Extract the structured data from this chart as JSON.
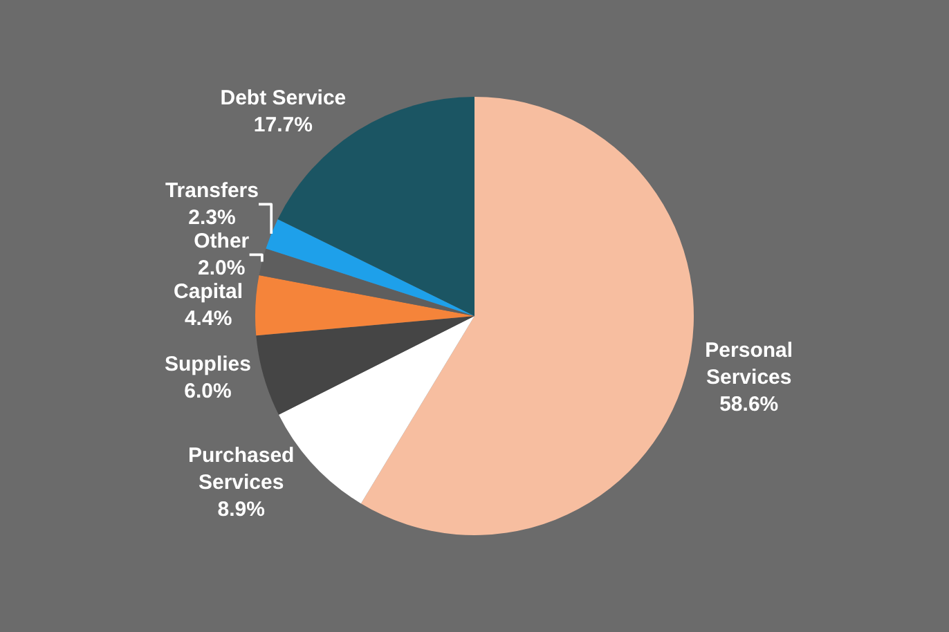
{
  "chart_data": {
    "type": "pie",
    "categories": [
      "Personal Services",
      "Purchased Services",
      "Supplies",
      "Capital",
      "Other",
      "Transfers",
      "Debt Service"
    ],
    "values": [
      58.6,
      8.9,
      6.0,
      4.4,
      2.0,
      2.3,
      17.7
    ],
    "value_labels": [
      "58.6%",
      "8.9%",
      "6.0%",
      "4.4%",
      "2.0%",
      "2.3%",
      "17.7%"
    ],
    "colors": [
      "#f7bea0",
      "#ffffff",
      "#454545",
      "#f5843a",
      "#5e5e5e",
      "#1ea0ea",
      "#1b5563"
    ],
    "legend": false
  }
}
